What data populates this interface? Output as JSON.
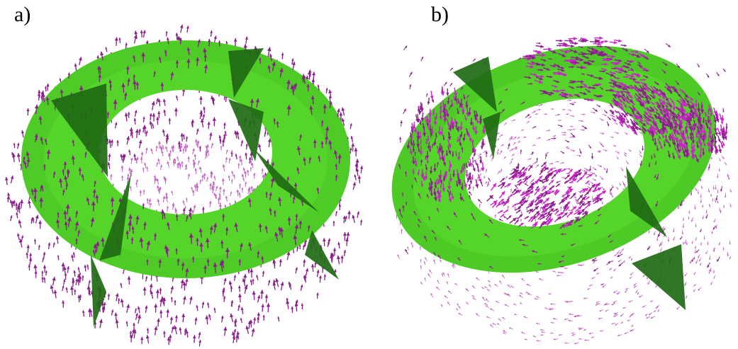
{
  "panels": [
    {
      "label": "a)"
    },
    {
      "label": "b)"
    }
  ],
  "colors": {
    "band_light": "#55d42a",
    "band_mid": "#44bb22",
    "band_dark": "#1f6a14",
    "arrow": "#8a1e8a",
    "arrow_light": "#c064c0",
    "arrow_bright": "#cc22cc",
    "background": "#ffffff"
  }
}
